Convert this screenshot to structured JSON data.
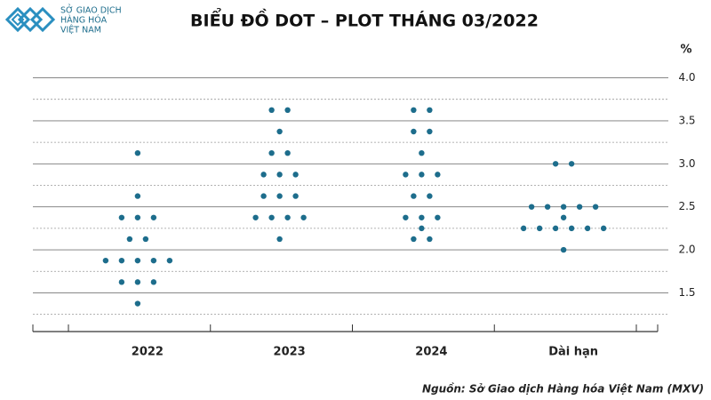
{
  "logo": {
    "lines": [
      "SỞ GIAO DỊCH",
      "HÀNG HÓA",
      "VIỆT NAM"
    ]
  },
  "chart_data": {
    "type": "dot",
    "title": "BIỂU ĐỒ DOT – PLOT THÁNG 03/2022",
    "y_unit": "%",
    "categories": [
      "2022",
      "2023",
      "2024",
      "Dài hạn"
    ],
    "values": [
      [
        3.125,
        2.625,
        2.375,
        2.375,
        2.375,
        2.125,
        2.125,
        1.875,
        1.875,
        1.875,
        1.875,
        1.875,
        1.625,
        1.625,
        1.625,
        1.375
      ],
      [
        3.625,
        3.625,
        3.375,
        3.125,
        3.125,
        2.875,
        2.875,
        2.875,
        2.625,
        2.625,
        2.625,
        2.375,
        2.375,
        2.375,
        2.375,
        2.125
      ],
      [
        3.625,
        3.625,
        3.375,
        3.375,
        3.125,
        2.875,
        2.875,
        2.875,
        2.625,
        2.625,
        2.375,
        2.375,
        2.375,
        2.25,
        2.125,
        2.125
      ],
      [
        3.0,
        3.0,
        2.5,
        2.5,
        2.5,
        2.5,
        2.5,
        2.375,
        2.25,
        2.25,
        2.25,
        2.25,
        2.25,
        2.25,
        2.0
      ]
    ],
    "color": "#1d6d8c",
    "ylim": [
      1.05,
      4.15
    ],
    "yticks": [
      1.5,
      {
        "value": 2,
        "label": "2.0"
      },
      2.5,
      {
        "value": 3,
        "label": "3.0"
      },
      3.5,
      {
        "value": 4,
        "label": "4.0"
      }
    ],
    "minor_yticks": [
      1.25,
      1.75,
      2.25,
      2.75,
      3.25,
      3.75
    ],
    "grid": true,
    "source": "Nguồn: Sở Giao dịch Hàng hóa Việt Nam (MXV)"
  }
}
